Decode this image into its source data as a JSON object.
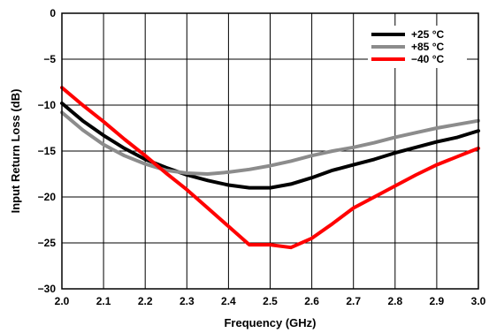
{
  "chart_data": {
    "type": "line",
    "xlabel": "Frequency (GHz)",
    "ylabel": "Input Return Loss (dB)",
    "xlim": [
      2.0,
      3.0
    ],
    "ylim": [
      -30,
      0
    ],
    "x_ticks": [
      "2.0",
      "2.1",
      "2.2",
      "2.3",
      "2.4",
      "2.5",
      "2.6",
      "2.7",
      "2.8",
      "2.9",
      "3.0"
    ],
    "y_ticks": [
      "0",
      "−5",
      "−10",
      "−15",
      "−20",
      "−25",
      "−30"
    ],
    "grid": true,
    "legend_position": "top-right",
    "series": [
      {
        "name": "+25 °C",
        "color": "#000000",
        "x": [
          2.0,
          2.05,
          2.1,
          2.15,
          2.2,
          2.25,
          2.3,
          2.35,
          2.4,
          2.45,
          2.5,
          2.55,
          2.6,
          2.65,
          2.7,
          2.75,
          2.8,
          2.85,
          2.9,
          2.95,
          3.0
        ],
        "y": [
          -9.8,
          -11.7,
          -13.3,
          -14.7,
          -15.9,
          -16.8,
          -17.6,
          -18.2,
          -18.7,
          -19.0,
          -19.0,
          -18.6,
          -17.9,
          -17.1,
          -16.5,
          -15.9,
          -15.2,
          -14.6,
          -14.0,
          -13.5,
          -12.8
        ]
      },
      {
        "name": "+85 °C",
        "color": "#8c8c8c",
        "x": [
          2.0,
          2.05,
          2.1,
          2.15,
          2.2,
          2.25,
          2.3,
          2.35,
          2.4,
          2.45,
          2.5,
          2.55,
          2.6,
          2.65,
          2.7,
          2.75,
          2.8,
          2.85,
          2.9,
          2.95,
          3.0
        ],
        "y": [
          -10.8,
          -12.7,
          -14.3,
          -15.5,
          -16.4,
          -17.1,
          -17.4,
          -17.5,
          -17.3,
          -17.0,
          -16.6,
          -16.1,
          -15.5,
          -15.0,
          -14.6,
          -14.1,
          -13.5,
          -13.0,
          -12.5,
          -12.1,
          -11.7
        ]
      },
      {
        "name": "−40 °C",
        "color": "#ff0000",
        "x": [
          2.0,
          2.05,
          2.1,
          2.15,
          2.2,
          2.25,
          2.3,
          2.35,
          2.4,
          2.45,
          2.5,
          2.55,
          2.6,
          2.65,
          2.7,
          2.75,
          2.8,
          2.85,
          2.9,
          2.95,
          3.0
        ],
        "y": [
          -8.1,
          -10.0,
          -11.8,
          -13.7,
          -15.5,
          -17.4,
          -19.2,
          -21.2,
          -23.2,
          -25.2,
          -25.2,
          -25.5,
          -24.5,
          -22.9,
          -21.2,
          -20.0,
          -18.8,
          -17.6,
          -16.5,
          -15.6,
          -14.7
        ]
      }
    ]
  }
}
